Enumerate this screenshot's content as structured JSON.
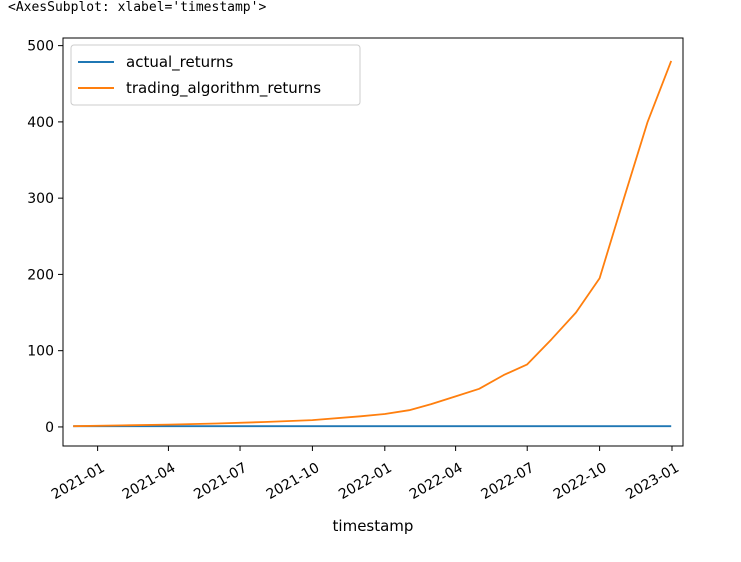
{
  "output_repr": "<AxesSubplot: xlabel='timestamp'>",
  "chart_data": {
    "type": "line",
    "title": "",
    "xlabel": "timestamp",
    "ylabel": "",
    "x_ticks": [
      "2021-01",
      "2021-04",
      "2021-07",
      "2021-10",
      "2022-01",
      "2022-04",
      "2022-07",
      "2022-10",
      "2023-01"
    ],
    "y_ticks": [
      0,
      100,
      200,
      300,
      400,
      500
    ],
    "xlim": [
      "2020-11-18",
      "2023-01-15"
    ],
    "ylim": [
      -25,
      510
    ],
    "grid": false,
    "legend": "upper-left",
    "series": [
      {
        "name": "actual_returns",
        "color": "#1f77b4",
        "x": [
          "2020-12-01",
          "2021-06-01",
          "2021-12-01",
          "2022-06-01",
          "2022-12-31"
        ],
        "y": [
          1,
          1,
          1,
          1,
          1
        ]
      },
      {
        "name": "trading_algorithm_returns",
        "color": "#ff7f0e",
        "x": [
          "2020-12-01",
          "2021-02-01",
          "2021-04-01",
          "2021-06-01",
          "2021-08-01",
          "2021-10-01",
          "2021-12-01",
          "2022-01-01",
          "2022-02-01",
          "2022-03-01",
          "2022-04-01",
          "2022-05-01",
          "2022-06-01",
          "2022-07-01",
          "2022-08-01",
          "2022-09-01",
          "2022-10-01",
          "2022-11-01",
          "2022-12-01",
          "2022-12-31"
        ],
        "y": [
          1,
          2,
          3,
          4.5,
          6.5,
          9,
          14,
          17,
          22,
          30,
          40,
          50,
          68,
          82,
          115,
          150,
          195,
          300,
          400,
          480
        ]
      }
    ]
  }
}
